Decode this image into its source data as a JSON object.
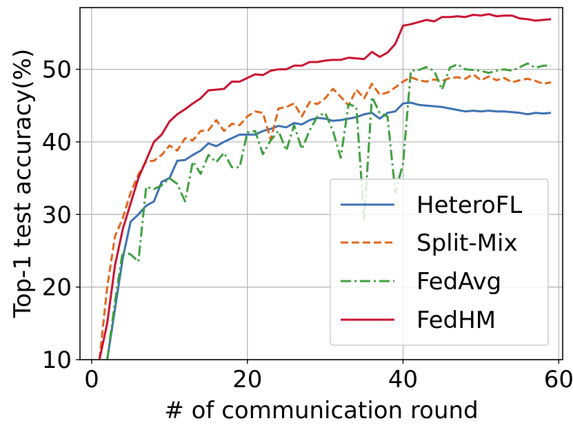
{
  "chart_data": {
    "type": "line",
    "xlabel": "# of communication round",
    "ylabel": "Top-1 test accuracy(%)",
    "xlim": [
      -1.5,
      60.5
    ],
    "ylim": [
      10,
      58.5
    ],
    "xticks": [
      0,
      20,
      40,
      60
    ],
    "yticks": [
      10,
      20,
      30,
      40,
      50
    ],
    "grid": true,
    "legend_position": "lower-right",
    "series": [
      {
        "name": "HeteroFL",
        "color": "#3a6fb0",
        "dash": "solid",
        "x": [
          2,
          3,
          4,
          5,
          6,
          7,
          8,
          9,
          10,
          11,
          12,
          13,
          14,
          15,
          16,
          17,
          18,
          19,
          20,
          21,
          22,
          23,
          24,
          25,
          26,
          27,
          28,
          29,
          30,
          31,
          32,
          33,
          34,
          35,
          36,
          37,
          38,
          39,
          40,
          41,
          42,
          43,
          44,
          45,
          46,
          47,
          48,
          49,
          50,
          51,
          52,
          53,
          54,
          55,
          56,
          57,
          58,
          59
        ],
        "values": [
          10,
          17,
          24,
          29,
          30,
          31.2,
          31.8,
          34.5,
          35,
          37.4,
          37.5,
          38.2,
          38.8,
          39.8,
          39.4,
          40,
          40.5,
          41,
          41,
          41,
          41.5,
          41.8,
          42.2,
          42,
          42.6,
          42.4,
          43,
          43.3,
          43.2,
          42.9,
          43,
          43.2,
          43.4,
          43.8,
          44,
          43.2,
          44,
          44.2,
          45.3,
          45.4,
          45.1,
          45,
          44.9,
          44.8,
          44.6,
          44.4,
          44.2,
          44.3,
          44.2,
          44.3,
          44.2,
          44.2,
          44.1,
          44.0,
          43.8,
          44.0,
          43.9,
          44.0
        ]
      },
      {
        "name": "Split-Mix",
        "color": "#e06418",
        "dash": "dashed",
        "x": [
          1,
          2,
          3,
          4,
          5,
          6,
          7,
          8,
          9,
          10,
          11,
          12,
          13,
          14,
          15,
          16,
          17,
          18,
          19,
          20,
          21,
          22,
          23,
          24,
          25,
          26,
          27,
          28,
          29,
          30,
          31,
          32,
          33,
          34,
          35,
          36,
          37,
          38,
          39,
          40,
          41,
          42,
          43,
          44,
          45,
          46,
          47,
          48,
          49,
          50,
          51,
          52,
          53,
          54,
          55,
          56,
          57,
          58,
          59
        ],
        "values": [
          10,
          20,
          27,
          29.5,
          33,
          35.5,
          37.3,
          37.4,
          38.2,
          39.5,
          38.8,
          40.5,
          40.2,
          41.5,
          41.6,
          43,
          41.5,
          42.5,
          42.3,
          43.5,
          44.2,
          44,
          40.3,
          44.6,
          44.8,
          45.3,
          43.5,
          45.5,
          45.2,
          46,
          47.3,
          46.2,
          45,
          47.2,
          46,
          48,
          46.5,
          46.8,
          47.5,
          48.3,
          48.9,
          48.5,
          48.3,
          48.6,
          48.4,
          48.8,
          48.9,
          48.7,
          49.3,
          48.5,
          49,
          48.5,
          48.8,
          48.2,
          48.5,
          48.7,
          48.4,
          48.0,
          48.2
        ]
      },
      {
        "name": "FedAvg",
        "color": "#3b9e3b",
        "dash": "dashdot",
        "x": [
          2,
          3,
          4,
          5,
          6,
          7,
          8,
          9,
          10,
          11,
          12,
          13,
          14,
          15,
          16,
          17,
          18,
          19,
          20,
          21,
          22,
          23,
          24,
          25,
          26,
          27,
          28,
          29,
          30,
          31,
          32,
          33,
          34,
          35,
          36,
          37,
          38,
          39,
          40,
          41,
          42,
          43,
          44,
          45,
          46,
          47,
          48,
          49,
          50,
          51,
          52,
          53,
          54,
          55,
          56,
          57,
          58,
          59
        ],
        "values": [
          10,
          18,
          25,
          24.5,
          23.5,
          33.8,
          33.5,
          34,
          35,
          34.2,
          31.8,
          37.3,
          35.6,
          38.2,
          37.2,
          38.5,
          36.5,
          36.5,
          41.3,
          41.5,
          38.3,
          40.2,
          41.5,
          38.8,
          42.3,
          39,
          41.6,
          43.5,
          44,
          41.5,
          37.8,
          45.2,
          44.8,
          29.3,
          46.2,
          44,
          43.5,
          33,
          37,
          49.8,
          49.9,
          50.3,
          49.8,
          47.2,
          50.2,
          50.7,
          50,
          49.9,
          49.8,
          49.5,
          49.8,
          50.0,
          49.8,
          50.3,
          50.8,
          50.2,
          50.5,
          50.5
        ]
      },
      {
        "name": "FedHM",
        "color": "#c8102e",
        "dash": "solid",
        "x": [
          1,
          2,
          3,
          4,
          5,
          6,
          7,
          8,
          9,
          10,
          11,
          12,
          13,
          14,
          15,
          16,
          17,
          18,
          19,
          20,
          21,
          22,
          23,
          24,
          25,
          26,
          27,
          28,
          29,
          30,
          31,
          32,
          33,
          34,
          35,
          36,
          37,
          38,
          39,
          40,
          41,
          42,
          43,
          44,
          45,
          46,
          47,
          48,
          49,
          50,
          51,
          52,
          53,
          54,
          55,
          56,
          57,
          58,
          59
        ],
        "values": [
          10,
          15,
          23,
          28,
          31.5,
          35,
          37.5,
          40,
          41,
          42.8,
          43.8,
          44.5,
          45.3,
          46,
          47.1,
          47.2,
          47.3,
          48.3,
          48.3,
          48.8,
          49.3,
          49.2,
          49.8,
          50,
          50,
          50.5,
          50.5,
          51,
          51,
          51.2,
          51.3,
          51.3,
          51.6,
          51.5,
          51.4,
          52.4,
          51.7,
          52.3,
          53.5,
          56,
          56.2,
          56.5,
          56.8,
          56.6,
          57.2,
          57.2,
          57.3,
          57.2,
          57.5,
          57.4,
          57.6,
          57.3,
          57.4,
          57.4,
          57.0,
          56.9,
          56.7,
          56.8,
          56.9
        ]
      }
    ]
  }
}
